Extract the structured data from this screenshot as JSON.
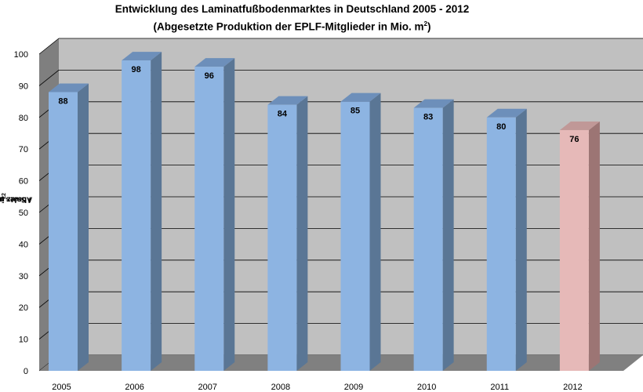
{
  "chart_data": {
    "type": "bar",
    "title_line1": "Entwicklung des Laminatfußbodenmarktes in Deutschland 2005 - 2012",
    "title_line2_text": "(Abgesetzte Produktion der EPLF-Mitglieder in Mio. m",
    "title_line2_sup": "2",
    "title_line2_end": ")",
    "ylabel_text_1": "Absatz in Mio. m",
    "ylabel_sup_1": "2",
    "ylabel_text_2": " / Sales in Mil. m",
    "ylabel_sup_2": "2",
    "categories": [
      "2005",
      "2006",
      "2007",
      "2008",
      "2009",
      "2010",
      "2011",
      "2012"
    ],
    "values": [
      88,
      98,
      96,
      84,
      85,
      83,
      80,
      76
    ],
    "data_labels": [
      "88",
      "98",
      "96",
      "84",
      "85",
      "83",
      "80",
      "76"
    ],
    "ylim": [
      0,
      100
    ],
    "yticks": [
      0,
      10,
      20,
      30,
      40,
      50,
      60,
      70,
      80,
      90,
      100
    ],
    "grid": true,
    "colors": {
      "bar_front": "#8db4e2",
      "bar_side": "#5a7695",
      "bar_top": "#6d8fba",
      "highlight_front": "#e6b9b8",
      "highlight_side": "#9c7574",
      "highlight_top": "#c09897",
      "back_wall": "#c0c0c0",
      "side_wall": "#7f7f7f",
      "floor": "#808080",
      "gridline": "#000000"
    }
  }
}
